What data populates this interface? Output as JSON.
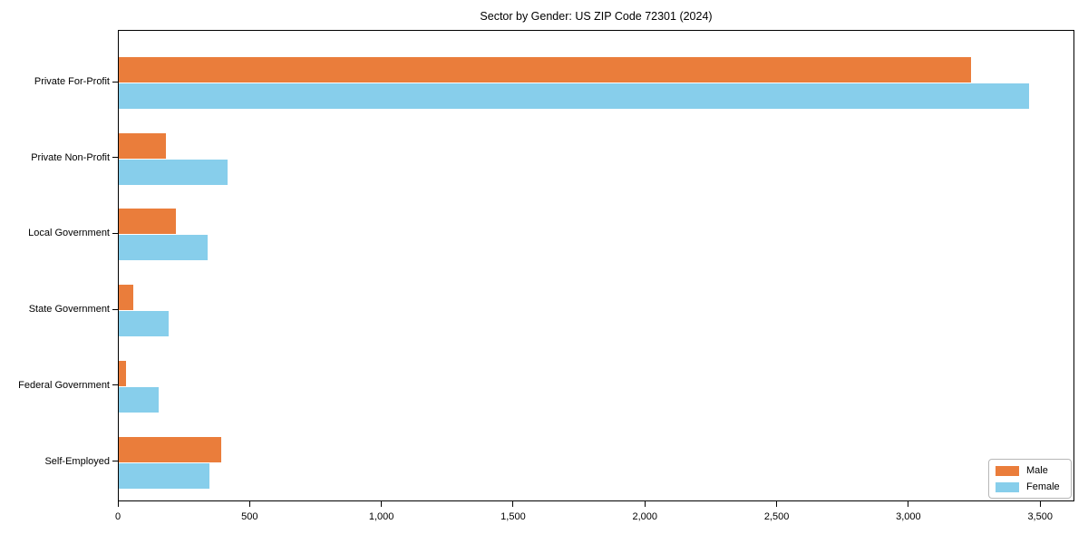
{
  "title": "Sector by Gender: US ZIP Code 72301 (2024)",
  "chart_data": {
    "type": "bar",
    "orientation": "horizontal",
    "title": "Sector by Gender: US ZIP Code 72301 (2024)",
    "categories": [
      "Private For-Profit",
      "Private Non-Profit",
      "Local Government",
      "State Government",
      "Federal Government",
      "Self-Employed"
    ],
    "series": [
      {
        "name": "Male",
        "color": "#EA7D3B",
        "values": [
          3235,
          178,
          218,
          55,
          28,
          389
        ]
      },
      {
        "name": "Female",
        "color": "#87CEEB",
        "values": [
          3455,
          412,
          338,
          189,
          152,
          344
        ]
      }
    ],
    "xlabel": "",
    "ylabel": "",
    "xlim": [
      0,
      3630
    ],
    "x_ticks": [
      0,
      500,
      1000,
      1500,
      2000,
      2500,
      3000,
      3500
    ],
    "x_tick_labels": [
      "0",
      "500",
      "1,000",
      "1,500",
      "2,000",
      "2,500",
      "3,000",
      "3,500"
    ],
    "grid": false,
    "legend_position": "lower right",
    "colors": {
      "male": "#EA7D3B",
      "female": "#87CEEB",
      "spine": "#000000",
      "legend_border": "#b7b7b7"
    }
  }
}
